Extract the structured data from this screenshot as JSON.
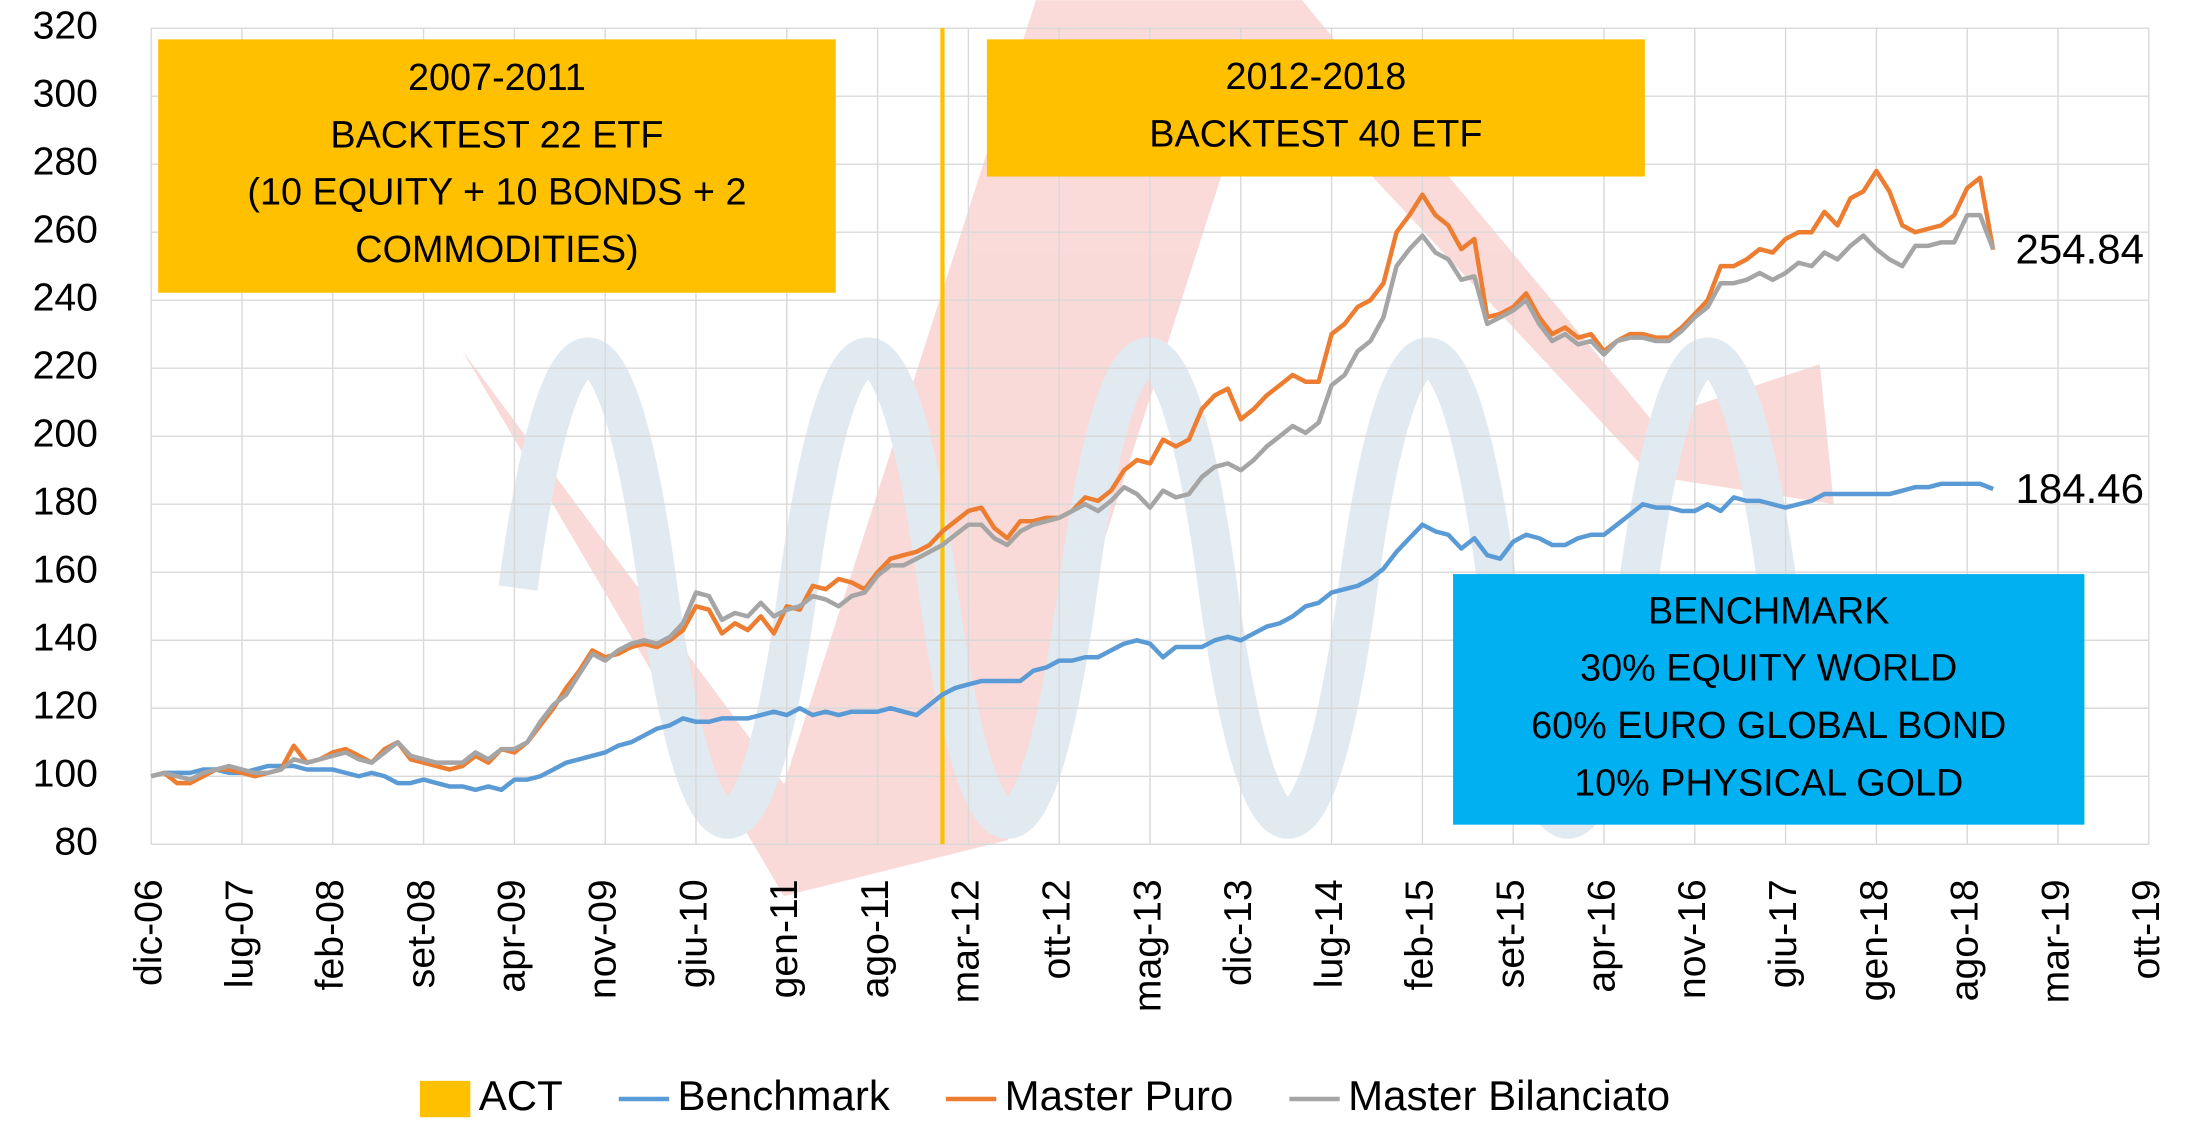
{
  "chart_data": {
    "type": "line",
    "categories": [
      "dic-06",
      null,
      null,
      null,
      null,
      null,
      null,
      "lug-07",
      null,
      null,
      null,
      null,
      null,
      null,
      "feb-08",
      null,
      null,
      null,
      null,
      null,
      null,
      "set-08",
      null,
      null,
      null,
      null,
      null,
      null,
      "apr-09",
      null,
      null,
      null,
      null,
      null,
      null,
      "nov-09",
      null,
      null,
      null,
      null,
      null,
      null,
      "giu-10",
      null,
      null,
      null,
      null,
      null,
      null,
      "gen-11",
      null,
      null,
      null,
      null,
      null,
      null,
      "ago-11",
      null,
      null,
      null,
      null,
      null,
      null,
      "mar-12",
      null,
      null,
      null,
      null,
      null,
      null,
      "ott-12",
      null,
      null,
      null,
      null,
      null,
      null,
      "mag-13",
      null,
      null,
      null,
      null,
      null,
      null,
      "dic-13",
      null,
      null,
      null,
      null,
      null,
      null,
      "lug-14",
      null,
      null,
      null,
      null,
      null,
      null,
      "feb-15",
      null,
      null,
      null,
      null,
      null,
      null,
      "set-15",
      null,
      null,
      null,
      null,
      null,
      null,
      "apr-16",
      null,
      null,
      null,
      null,
      null,
      null,
      "nov-16",
      null,
      null,
      null,
      null,
      null,
      null,
      "giu-17",
      null,
      null,
      null,
      null,
      null,
      null,
      "gen-18",
      null,
      null,
      null,
      null,
      null,
      null,
      "ago-18",
      null,
      null,
      null,
      null,
      null,
      null,
      "mar-19",
      null,
      null,
      null,
      null,
      null,
      null,
      "ott-19"
    ],
    "series": [
      {
        "name": "ACT",
        "color": "#ffc000",
        "kind": "bar",
        "values": [
          null,
          null,
          null,
          null,
          null,
          null,
          null,
          null,
          null,
          null,
          null,
          null,
          null,
          null,
          null,
          null,
          null,
          null,
          null,
          null,
          null,
          null,
          null,
          null,
          null,
          null,
          null,
          null,
          null,
          null,
          null,
          null,
          null,
          null,
          null,
          null,
          null,
          null,
          null,
          null,
          null,
          null,
          null,
          null,
          null,
          null,
          null,
          null,
          null,
          null,
          null,
          null,
          null,
          null,
          null,
          null,
          null,
          null,
          null,
          null,
          null,
          320,
          null,
          null,
          null,
          null,
          null,
          null,
          null,
          null,
          null,
          null,
          null,
          null,
          null,
          null,
          null,
          null,
          null,
          null,
          null,
          null,
          null,
          null,
          null,
          null,
          null,
          null,
          null,
          null,
          null,
          null,
          null,
          null,
          null,
          null,
          null,
          null,
          null,
          null,
          null,
          null,
          null,
          null,
          null,
          null,
          null,
          null,
          null,
          null,
          null,
          null,
          null,
          null,
          null,
          null,
          null,
          null,
          null,
          null,
          null,
          null,
          null,
          null,
          null,
          null,
          null,
          null,
          null,
          null,
          null,
          null,
          null,
          null,
          null,
          null,
          null,
          null,
          null,
          null,
          null,
          null,
          null,
          null,
          null,
          null,
          null,
          null,
          null,
          null,
          null,
          null,
          null,
          null,
          null
        ]
      },
      {
        "name": "Benchmark",
        "color": "#5b9bd5",
        "values": [
          100,
          101,
          101,
          101,
          102,
          102,
          101,
          101,
          102,
          103,
          103,
          103,
          102,
          102,
          102,
          101,
          100,
          101,
          100,
          98,
          98,
          99,
          98,
          97,
          97,
          96,
          97,
          96,
          99,
          99,
          100,
          102,
          104,
          105,
          106,
          107,
          109,
          110,
          112,
          114,
          115,
          117,
          116,
          116,
          117,
          117,
          117,
          118,
          119,
          118,
          120,
          118,
          119,
          118,
          119,
          119,
          119,
          120,
          119,
          118,
          121,
          124,
          126,
          127,
          128,
          128,
          128,
          128,
          131,
          132,
          134,
          134,
          135,
          135,
          137,
          139,
          140,
          139,
          135,
          138,
          138,
          138,
          140,
          141,
          140,
          142,
          144,
          145,
          147,
          150,
          151,
          154,
          155,
          156,
          158,
          161,
          166,
          170,
          174,
          172,
          171,
          167,
          170,
          165,
          164,
          169,
          171,
          170,
          168,
          168,
          170,
          171,
          171,
          174,
          177,
          180,
          179,
          179,
          178,
          178,
          180,
          178,
          182,
          181,
          181,
          180,
          179,
          180,
          181,
          183,
          183,
          183,
          183,
          183,
          183,
          184,
          185,
          185,
          186,
          186,
          186,
          186,
          184.46,
          null,
          null,
          null,
          null,
          null,
          null,
          null,
          null,
          null,
          null,
          null,
          null
        ]
      },
      {
        "name": "Master Puro",
        "color": "#ed7d31",
        "values": [
          100,
          101,
          98,
          98,
          100,
          102,
          102,
          101,
          100,
          101,
          102,
          109,
          104,
          105,
          107,
          108,
          106,
          104,
          108,
          110,
          105,
          104,
          103,
          102,
          103,
          106,
          104,
          108,
          107,
          110,
          115,
          120,
          126,
          131,
          137,
          135,
          136,
          138,
          139,
          138,
          140,
          143,
          150,
          149,
          142,
          145,
          143,
          147,
          142,
          150,
          149,
          156,
          155,
          158,
          157,
          155,
          160,
          164,
          165,
          166,
          168,
          172,
          175,
          178,
          179,
          173,
          170,
          175,
          175,
          176,
          176,
          178,
          182,
          181,
          184,
          190,
          193,
          192,
          199,
          197,
          199,
          208,
          212,
          214,
          205,
          208,
          212,
          215,
          218,
          216,
          216,
          230,
          233,
          238,
          240,
          245,
          260,
          265,
          271,
          265,
          262,
          255,
          258,
          235,
          236,
          238,
          242,
          235,
          230,
          232,
          229,
          230,
          225,
          228,
          230,
          230,
          229,
          229,
          232,
          236,
          240,
          250,
          250,
          252,
          255,
          254,
          258,
          260,
          260,
          266,
          262,
          270,
          272,
          278,
          272,
          262,
          260,
          261,
          262,
          265,
          273,
          276,
          254.84,
          null,
          null,
          null,
          null,
          null,
          null,
          null,
          null,
          null,
          null,
          null,
          null
        ]
      },
      {
        "name": "Master Bilanciato",
        "color": "#a5a5a5",
        "values": [
          100,
          101,
          100,
          99,
          101,
          102,
          103,
          102,
          101,
          101,
          102,
          105,
          104,
          105,
          106,
          107,
          105,
          104,
          107,
          110,
          106,
          105,
          104,
          104,
          104,
          107,
          105,
          108,
          108,
          110,
          116,
          121,
          124,
          130,
          136,
          134,
          137,
          139,
          140,
          139,
          141,
          145,
          154,
          153,
          146,
          148,
          147,
          151,
          147,
          149,
          150,
          153,
          152,
          150,
          153,
          154,
          159,
          162,
          162,
          164,
          166,
          168,
          171,
          174,
          174,
          170,
          168,
          172,
          174,
          175,
          176,
          178,
          180,
          178,
          181,
          185,
          183,
          179,
          184,
          182,
          183,
          188,
          191,
          192,
          190,
          193,
          197,
          200,
          203,
          201,
          204,
          215,
          218,
          225,
          228,
          235,
          250,
          255,
          259,
          254,
          252,
          246,
          247,
          233,
          235,
          237,
          240,
          233,
          228,
          230,
          227,
          228,
          224,
          228,
          229,
          229,
          228,
          228,
          231,
          235,
          238,
          245,
          245,
          246,
          248,
          246,
          248,
          251,
          250,
          254,
          252,
          256,
          259,
          255,
          252,
          250,
          256,
          256,
          257,
          257,
          265,
          265,
          255,
          null,
          null,
          null,
          null,
          null,
          null,
          null,
          null,
          null,
          null,
          null,
          null
        ]
      }
    ],
    "ylim": [
      80,
      320
    ],
    "yticks": [
      80,
      100,
      120,
      140,
      160,
      180,
      200,
      220,
      240,
      260,
      280,
      300,
      320
    ],
    "grid": true,
    "legend": "bottom",
    "annotations": [
      {
        "text": "254.84",
        "series": 2
      },
      {
        "text": "184.46",
        "series": 1
      }
    ],
    "boxes": [
      {
        "color": "#ffc000",
        "lines": [
          "2007-2011",
          "BACKTEST 22 ETF",
          "(10 EQUITY + 10 BONDS + 2",
          "COMMODITIES)"
        ]
      },
      {
        "color": "#ffc000",
        "lines": [
          "2012-2018",
          "BACKTEST 40 ETF"
        ]
      },
      {
        "color": "#00b0f0",
        "lines": [
          "BENCHMARK",
          "30% EQUITY WORLD",
          "60% EURO GLOBAL BOND",
          "10% PHYSICAL GOLD"
        ]
      }
    ]
  }
}
